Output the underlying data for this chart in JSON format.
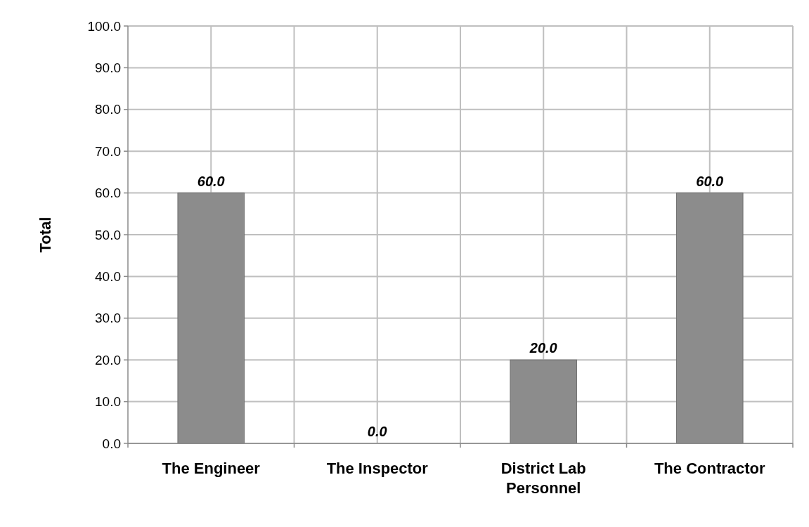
{
  "chart_data": {
    "type": "bar",
    "ylabel": "Total",
    "categories": [
      "The Engineer",
      "The Inspector",
      "District Lab Personnel",
      "The Contractor"
    ],
    "values": [
      60,
      0,
      20,
      60
    ],
    "value_labels": [
      "60.0",
      "0.0",
      "20.0",
      "60.0"
    ],
    "color": "#8c8c8c",
    "ylim": [
      0,
      100
    ],
    "yticks": [
      {
        "value": 0,
        "label": "0.0"
      },
      {
        "value": 10,
        "label": "10.0"
      },
      {
        "value": 20,
        "label": "20.0"
      },
      {
        "value": 30,
        "label": "30.0"
      },
      {
        "value": 40,
        "label": "40.0"
      },
      {
        "value": 50,
        "label": "50.0"
      },
      {
        "value": 60,
        "label": "60.0"
      },
      {
        "value": 70,
        "label": "70.0"
      },
      {
        "value": 80,
        "label": "80.0"
      },
      {
        "value": 90,
        "label": "90.0"
      },
      {
        "value": 100,
        "label": "100.0"
      }
    ],
    "grid": true
  }
}
